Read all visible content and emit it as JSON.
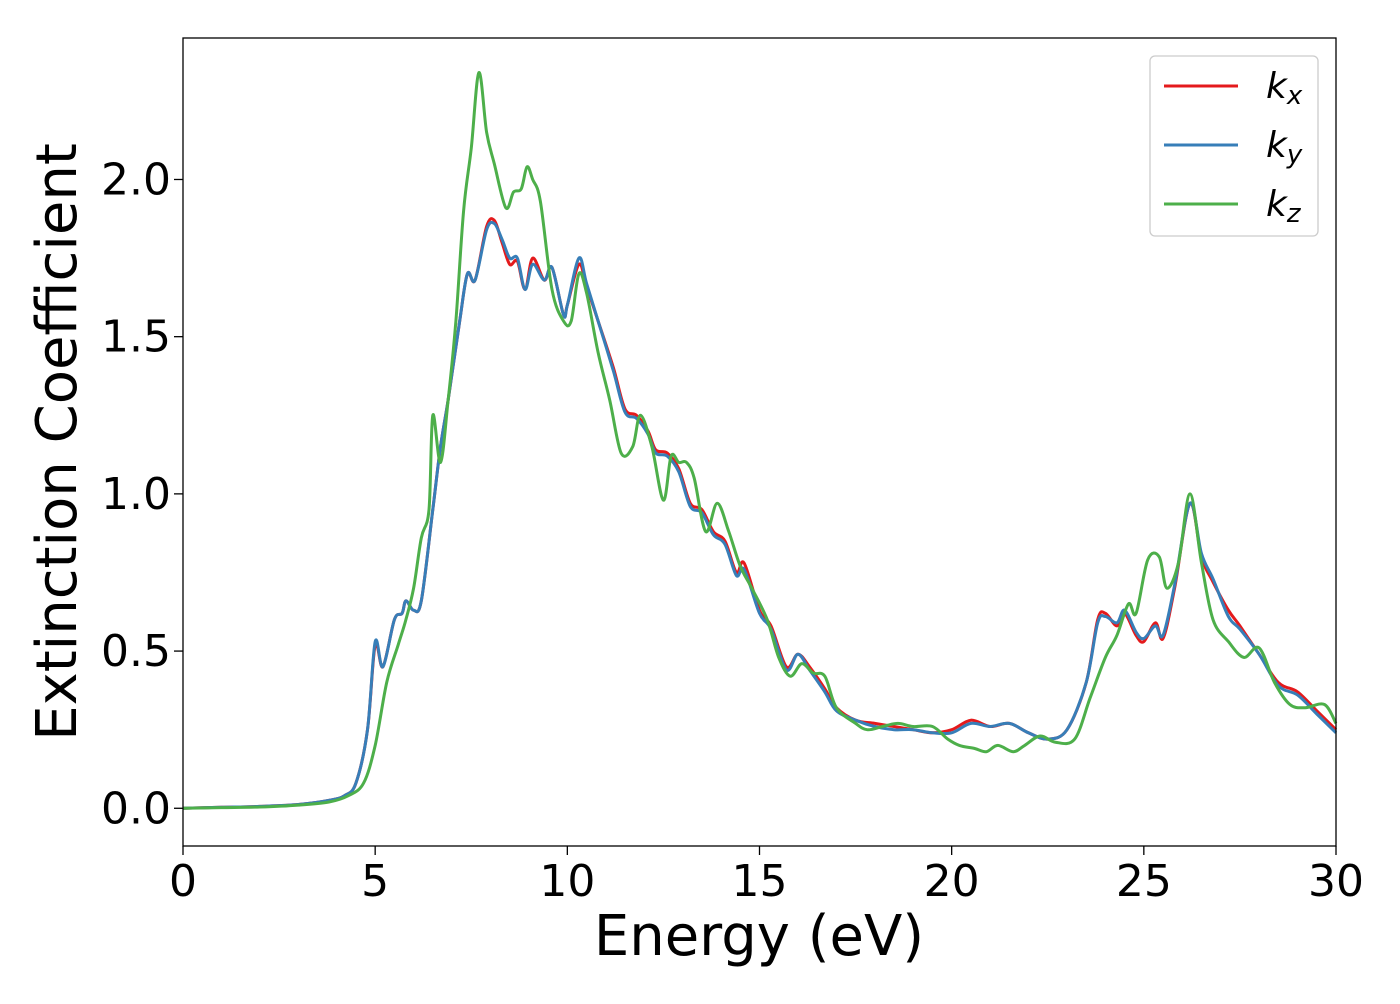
{
  "chart_data": {
    "type": "line",
    "title": "",
    "xlabel": "Energy (eV)",
    "ylabel": "Extinction Coefficient",
    "xlim": [
      0,
      30
    ],
    "ylim": [
      -0.12,
      2.45
    ],
    "xticks": [
      0,
      5,
      10,
      15,
      20,
      25,
      30
    ],
    "xtick_labels": [
      "0",
      "5",
      "10",
      "15",
      "20",
      "25",
      "30"
    ],
    "yticks": [
      0.0,
      0.5,
      1.0,
      1.5,
      2.0
    ],
    "ytick_labels": [
      "0.0",
      "0.5",
      "1.0",
      "1.5",
      "2.0"
    ],
    "grid": false,
    "legend_position": "top-right",
    "series": [
      {
        "name": "k_x",
        "legend_base": "k",
        "legend_sub": "x",
        "color": "#e41a1c",
        "points": [
          [
            0,
            0
          ],
          [
            1,
            0.003
          ],
          [
            2,
            0.006
          ],
          [
            3,
            0.012
          ],
          [
            3.8,
            0.025
          ],
          [
            4.2,
            0.04
          ],
          [
            4.5,
            0.08
          ],
          [
            4.8,
            0.25
          ],
          [
            5.0,
            0.52
          ],
          [
            5.2,
            0.45
          ],
          [
            5.5,
            0.6
          ],
          [
            5.7,
            0.62
          ],
          [
            5.8,
            0.66
          ],
          [
            6.0,
            0.63
          ],
          [
            6.2,
            0.66
          ],
          [
            6.5,
            0.95
          ],
          [
            6.7,
            1.15
          ],
          [
            6.9,
            1.3
          ],
          [
            7.2,
            1.55
          ],
          [
            7.4,
            1.7
          ],
          [
            7.6,
            1.68
          ],
          [
            7.9,
            1.85
          ],
          [
            8.1,
            1.87
          ],
          [
            8.3,
            1.8
          ],
          [
            8.5,
            1.73
          ],
          [
            8.7,
            1.74
          ],
          [
            8.9,
            1.65
          ],
          [
            9.1,
            1.75
          ],
          [
            9.4,
            1.68
          ],
          [
            9.6,
            1.72
          ],
          [
            9.9,
            1.57
          ],
          [
            10.0,
            1.6
          ],
          [
            10.3,
            1.73
          ],
          [
            10.5,
            1.66
          ],
          [
            10.8,
            1.55
          ],
          [
            11.2,
            1.4
          ],
          [
            11.5,
            1.27
          ],
          [
            11.8,
            1.25
          ],
          [
            12.1,
            1.2
          ],
          [
            12.3,
            1.14
          ],
          [
            12.6,
            1.13
          ],
          [
            12.9,
            1.08
          ],
          [
            13.2,
            0.97
          ],
          [
            13.5,
            0.95
          ],
          [
            13.8,
            0.88
          ],
          [
            14.1,
            0.85
          ],
          [
            14.4,
            0.75
          ],
          [
            14.6,
            0.78
          ],
          [
            15.0,
            0.63
          ],
          [
            15.3,
            0.58
          ],
          [
            15.7,
            0.45
          ],
          [
            16.0,
            0.49
          ],
          [
            16.3,
            0.45
          ],
          [
            16.7,
            0.38
          ],
          [
            17.0,
            0.32
          ],
          [
            17.5,
            0.28
          ],
          [
            18.0,
            0.27
          ],
          [
            18.5,
            0.26
          ],
          [
            19.0,
            0.25
          ],
          [
            19.5,
            0.24
          ],
          [
            20.0,
            0.25
          ],
          [
            20.5,
            0.28
          ],
          [
            21.0,
            0.26
          ],
          [
            21.5,
            0.27
          ],
          [
            22.0,
            0.24
          ],
          [
            22.5,
            0.22
          ],
          [
            23.0,
            0.25
          ],
          [
            23.5,
            0.4
          ],
          [
            23.8,
            0.6
          ],
          [
            24.0,
            0.62
          ],
          [
            24.3,
            0.58
          ],
          [
            24.5,
            0.62
          ],
          [
            24.8,
            0.55
          ],
          [
            25.0,
            0.53
          ],
          [
            25.3,
            0.59
          ],
          [
            25.5,
            0.54
          ],
          [
            25.8,
            0.7
          ],
          [
            26.2,
            0.97
          ],
          [
            26.5,
            0.8
          ],
          [
            26.8,
            0.72
          ],
          [
            27.2,
            0.63
          ],
          [
            27.5,
            0.58
          ],
          [
            28.0,
            0.49
          ],
          [
            28.5,
            0.4
          ],
          [
            29.0,
            0.37
          ],
          [
            29.5,
            0.31
          ],
          [
            30.0,
            0.25
          ]
        ]
      },
      {
        "name": "k_y",
        "legend_base": "k",
        "legend_sub": "y",
        "color": "#377eb8",
        "points": [
          [
            0,
            0
          ],
          [
            1,
            0.003
          ],
          [
            2,
            0.006
          ],
          [
            3,
            0.012
          ],
          [
            3.8,
            0.025
          ],
          [
            4.2,
            0.04
          ],
          [
            4.5,
            0.08
          ],
          [
            4.8,
            0.25
          ],
          [
            5.0,
            0.53
          ],
          [
            5.2,
            0.45
          ],
          [
            5.5,
            0.6
          ],
          [
            5.7,
            0.62
          ],
          [
            5.8,
            0.66
          ],
          [
            6.0,
            0.63
          ],
          [
            6.2,
            0.66
          ],
          [
            6.5,
            0.95
          ],
          [
            6.7,
            1.15
          ],
          [
            6.9,
            1.3
          ],
          [
            7.2,
            1.55
          ],
          [
            7.4,
            1.7
          ],
          [
            7.6,
            1.68
          ],
          [
            7.9,
            1.84
          ],
          [
            8.1,
            1.86
          ],
          [
            8.3,
            1.81
          ],
          [
            8.5,
            1.75
          ],
          [
            8.7,
            1.75
          ],
          [
            8.9,
            1.65
          ],
          [
            9.1,
            1.73
          ],
          [
            9.4,
            1.68
          ],
          [
            9.6,
            1.72
          ],
          [
            9.9,
            1.57
          ],
          [
            10.0,
            1.6
          ],
          [
            10.3,
            1.75
          ],
          [
            10.5,
            1.67
          ],
          [
            10.8,
            1.55
          ],
          [
            11.2,
            1.39
          ],
          [
            11.5,
            1.26
          ],
          [
            11.8,
            1.24
          ],
          [
            12.1,
            1.19
          ],
          [
            12.3,
            1.13
          ],
          [
            12.6,
            1.12
          ],
          [
            12.9,
            1.07
          ],
          [
            13.2,
            0.96
          ],
          [
            13.5,
            0.94
          ],
          [
            13.8,
            0.87
          ],
          [
            14.1,
            0.84
          ],
          [
            14.4,
            0.74
          ],
          [
            14.6,
            0.76
          ],
          [
            15.0,
            0.62
          ],
          [
            15.3,
            0.57
          ],
          [
            15.7,
            0.44
          ],
          [
            16.0,
            0.49
          ],
          [
            16.3,
            0.44
          ],
          [
            16.7,
            0.37
          ],
          [
            17.0,
            0.31
          ],
          [
            17.5,
            0.28
          ],
          [
            18.0,
            0.26
          ],
          [
            18.5,
            0.25
          ],
          [
            19.0,
            0.25
          ],
          [
            19.5,
            0.24
          ],
          [
            20.0,
            0.24
          ],
          [
            20.5,
            0.27
          ],
          [
            21.0,
            0.26
          ],
          [
            21.5,
            0.27
          ],
          [
            22.0,
            0.24
          ],
          [
            22.5,
            0.22
          ],
          [
            23.0,
            0.25
          ],
          [
            23.5,
            0.4
          ],
          [
            23.8,
            0.59
          ],
          [
            24.0,
            0.61
          ],
          [
            24.3,
            0.59
          ],
          [
            24.5,
            0.63
          ],
          [
            24.8,
            0.56
          ],
          [
            25.0,
            0.54
          ],
          [
            25.3,
            0.58
          ],
          [
            25.5,
            0.55
          ],
          [
            25.8,
            0.71
          ],
          [
            26.2,
            0.97
          ],
          [
            26.5,
            0.81
          ],
          [
            26.8,
            0.73
          ],
          [
            27.2,
            0.61
          ],
          [
            27.5,
            0.57
          ],
          [
            28.0,
            0.49
          ],
          [
            28.5,
            0.39
          ],
          [
            29.0,
            0.36
          ],
          [
            29.5,
            0.3
          ],
          [
            30.0,
            0.24
          ]
        ]
      },
      {
        "name": "k_z",
        "legend_base": "k",
        "legend_sub": "z",
        "color": "#4daf4a",
        "points": [
          [
            0,
            0
          ],
          [
            1,
            0.002
          ],
          [
            2,
            0.004
          ],
          [
            3,
            0.01
          ],
          [
            3.8,
            0.02
          ],
          [
            4.3,
            0.04
          ],
          [
            4.7,
            0.08
          ],
          [
            5.0,
            0.2
          ],
          [
            5.3,
            0.4
          ],
          [
            5.6,
            0.52
          ],
          [
            5.8,
            0.6
          ],
          [
            6.0,
            0.7
          ],
          [
            6.2,
            0.86
          ],
          [
            6.4,
            0.95
          ],
          [
            6.5,
            1.25
          ],
          [
            6.7,
            1.1
          ],
          [
            6.9,
            1.3
          ],
          [
            7.1,
            1.55
          ],
          [
            7.3,
            1.9
          ],
          [
            7.5,
            2.1
          ],
          [
            7.7,
            2.34
          ],
          [
            7.9,
            2.15
          ],
          [
            8.1,
            2.05
          ],
          [
            8.4,
            1.91
          ],
          [
            8.6,
            1.96
          ],
          [
            8.8,
            1.97
          ],
          [
            8.95,
            2.04
          ],
          [
            9.1,
            2.0
          ],
          [
            9.3,
            1.93
          ],
          [
            9.6,
            1.65
          ],
          [
            9.9,
            1.55
          ],
          [
            10.1,
            1.55
          ],
          [
            10.3,
            1.7
          ],
          [
            10.5,
            1.64
          ],
          [
            10.8,
            1.45
          ],
          [
            11.1,
            1.3
          ],
          [
            11.4,
            1.13
          ],
          [
            11.7,
            1.15
          ],
          [
            11.9,
            1.25
          ],
          [
            12.2,
            1.15
          ],
          [
            12.5,
            0.98
          ],
          [
            12.7,
            1.12
          ],
          [
            12.9,
            1.1
          ],
          [
            13.1,
            1.1
          ],
          [
            13.3,
            1.05
          ],
          [
            13.6,
            0.88
          ],
          [
            13.9,
            0.97
          ],
          [
            14.2,
            0.88
          ],
          [
            14.5,
            0.77
          ],
          [
            14.8,
            0.7
          ],
          [
            15.2,
            0.6
          ],
          [
            15.5,
            0.48
          ],
          [
            15.8,
            0.42
          ],
          [
            16.1,
            0.46
          ],
          [
            16.4,
            0.43
          ],
          [
            16.7,
            0.42
          ],
          [
            17.0,
            0.32
          ],
          [
            17.5,
            0.27
          ],
          [
            17.8,
            0.25
          ],
          [
            18.2,
            0.26
          ],
          [
            18.6,
            0.27
          ],
          [
            19.0,
            0.26
          ],
          [
            19.5,
            0.26
          ],
          [
            19.9,
            0.22
          ],
          [
            20.2,
            0.2
          ],
          [
            20.6,
            0.19
          ],
          [
            20.9,
            0.18
          ],
          [
            21.2,
            0.2
          ],
          [
            21.6,
            0.18
          ],
          [
            21.9,
            0.2
          ],
          [
            22.3,
            0.23
          ],
          [
            22.7,
            0.21
          ],
          [
            23.2,
            0.22
          ],
          [
            23.6,
            0.35
          ],
          [
            24.0,
            0.48
          ],
          [
            24.3,
            0.55
          ],
          [
            24.6,
            0.65
          ],
          [
            24.8,
            0.62
          ],
          [
            25.1,
            0.79
          ],
          [
            25.4,
            0.8
          ],
          [
            25.6,
            0.7
          ],
          [
            25.9,
            0.78
          ],
          [
            26.2,
            1.0
          ],
          [
            26.5,
            0.78
          ],
          [
            26.8,
            0.6
          ],
          [
            27.2,
            0.53
          ],
          [
            27.6,
            0.48
          ],
          [
            28.0,
            0.51
          ],
          [
            28.4,
            0.4
          ],
          [
            28.8,
            0.33
          ],
          [
            29.2,
            0.32
          ],
          [
            29.7,
            0.33
          ],
          [
            30.0,
            0.27
          ]
        ]
      }
    ]
  }
}
